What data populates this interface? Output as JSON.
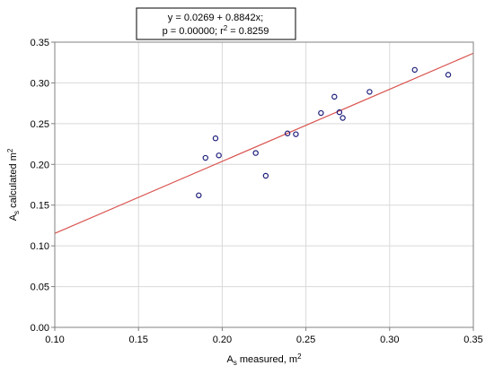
{
  "chart_data": {
    "type": "scatter",
    "xlabel": {
      "main": "A",
      "sub": "s",
      "rest": " measured, m",
      "sup": "2"
    },
    "ylabel": {
      "main": "A",
      "sub": "s",
      "rest": " calculated m",
      "sup": "2"
    },
    "xlim": [
      0.1,
      0.35
    ],
    "ylim": [
      0.0,
      0.35
    ],
    "x_ticks": [
      0.1,
      0.15,
      0.2,
      0.25,
      0.3,
      0.35
    ],
    "y_ticks": [
      0.0,
      0.05,
      0.1,
      0.15,
      0.2,
      0.25,
      0.3,
      0.35
    ],
    "tick_decimals": 2,
    "grid": true,
    "series": [
      {
        "marker": "circle-open",
        "color": "#1c1c7a",
        "points": [
          [
            0.186,
            0.162
          ],
          [
            0.19,
            0.208
          ],
          [
            0.196,
            0.232
          ],
          [
            0.198,
            0.211
          ],
          [
            0.22,
            0.214
          ],
          [
            0.226,
            0.186
          ],
          [
            0.239,
            0.238
          ],
          [
            0.244,
            0.237
          ],
          [
            0.259,
            0.263
          ],
          [
            0.267,
            0.283
          ],
          [
            0.27,
            0.264
          ],
          [
            0.272,
            0.257
          ],
          [
            0.288,
            0.289
          ],
          [
            0.315,
            0.316
          ],
          [
            0.335,
            0.31
          ]
        ]
      }
    ],
    "fit_line": {
      "intercept": 0.0269,
      "slope": 0.8842,
      "color": "#d9534f"
    },
    "annotation": {
      "line1": "y = 0.0269 + 0.8842x;",
      "line2_prefix": "p = 0.00000; r",
      "line2_sup": "2",
      "line2_suffix": " = 0.8259"
    }
  }
}
